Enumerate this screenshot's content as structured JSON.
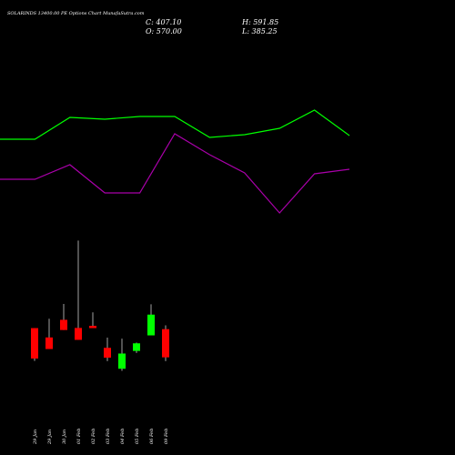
{
  "chart_data": {
    "type": "candlestick",
    "title": "SOLARINDS 13400.00 PE Options Chart MunafaSutra.com",
    "ohlc_readout": {
      "close": "C: 407.10",
      "open": "O: 570.00",
      "high": "H: 591.85",
      "low": "L: 385.25"
    },
    "x_labels": [
      "29 Jan",
      "29 Jan",
      "30 Jan",
      "01 Feb",
      "02 Feb",
      "03 Feb",
      "04 Feb",
      "05 Feb",
      "06 Feb",
      "09 Feb"
    ],
    "ohlc_rows": [
      {
        "o": 576,
        "h": 576,
        "l": 386,
        "c": 400
      },
      {
        "o": 522,
        "h": 630,
        "l": 455,
        "c": 455
      },
      {
        "o": 624,
        "h": 716,
        "l": 565,
        "c": 565
      },
      {
        "o": 577,
        "h": 1082,
        "l": 508,
        "c": 508
      },
      {
        "o": 589,
        "h": 667,
        "l": 576,
        "c": 576
      },
      {
        "o": 462,
        "h": 521,
        "l": 385,
        "c": 405
      },
      {
        "o": 341,
        "h": 515,
        "l": 329,
        "c": 429
      },
      {
        "o": 444,
        "h": 492,
        "l": 432,
        "c": 488
      },
      {
        "o": 534,
        "h": 714,
        "l": 534,
        "c": 654
      },
      {
        "o": 570,
        "h": 592,
        "l": 385,
        "c": 407
      }
    ],
    "upper_line": {
      "color": "#00ff00",
      "values": [
        153,
        153,
        129,
        131,
        128,
        128,
        151,
        148,
        141,
        121,
        149
      ]
    },
    "lower_line": {
      "color": "#aa00aa",
      "values": [
        197,
        197,
        181,
        212,
        212,
        147,
        170,
        190,
        234,
        191,
        186
      ]
    },
    "colors": {
      "up": "#00ff00",
      "down": "#ff0000",
      "wick": "#cccccc",
      "background": "#000000"
    }
  }
}
